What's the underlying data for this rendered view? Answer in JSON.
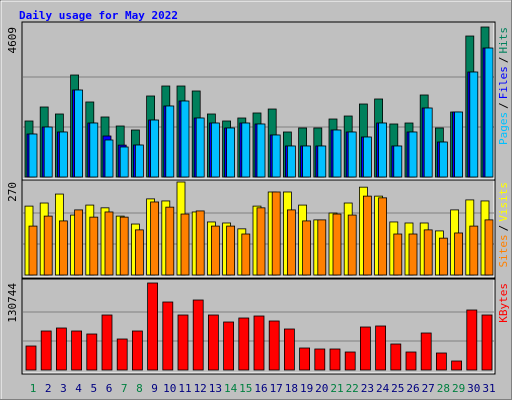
{
  "title": "Daily usage for May 2022",
  "separator": "/",
  "chart_data": [
    {
      "type": "bar",
      "ylim": [
        0,
        4609
      ],
      "yticks": [
        4609
      ],
      "series": [
        {
          "name": "Hits",
          "color": "#00805c",
          "values": [
            1721,
            2151,
            1936,
            3134,
            2305,
            1844,
            1567,
            1444,
            2489,
            2796,
            2796,
            2643,
            1936,
            1721,
            1813,
            1967,
            2089,
            1383,
            1506,
            1506,
            1782,
            1874,
            2243,
            2397,
            1629,
            1659,
            2520,
            1506,
            1997,
            4332,
            4609
          ]
        },
        {
          "name": "Files",
          "color": "#0000ff",
          "values": [
            1321,
            1536,
            1383,
            2673,
            1659,
            1260,
            980,
            983,
            1751,
            2182,
            2335,
            1813,
            1659,
            1506,
            1659,
            1629,
            1291,
            953,
            953,
            953,
            1444,
            1383,
            1229,
            1659,
            953,
            1383,
            2120,
            1075,
            1997,
            3226,
            3963
          ]
        },
        {
          "name": "Pages",
          "color": "#00c0ff",
          "values": [
            1321,
            1536,
            1383,
            2673,
            1659,
            1137,
            922,
            983,
            1751,
            2182,
            2335,
            1813,
            1659,
            1506,
            1659,
            1629,
            1291,
            953,
            953,
            953,
            1444,
            1383,
            1229,
            1659,
            953,
            1383,
            2120,
            1075,
            1997,
            3226,
            3963
          ]
        }
      ]
    },
    {
      "type": "bar",
      "ylim": [
        0,
        270
      ],
      "yticks": [
        270
      ],
      "series": [
        {
          "name": "Visits",
          "color": "#ffff00",
          "values": [
            200,
            209,
            235,
            174,
            203,
            195,
            171,
            148,
            221,
            215,
            270,
            183,
            154,
            151,
            134,
            200,
            241,
            241,
            203,
            160,
            180,
            209,
            255,
            229,
            154,
            151,
            151,
            128,
            189,
            218,
            215
          ]
        },
        {
          "name": "Sites",
          "color": "#ff8000",
          "values": [
            142,
            171,
            157,
            189,
            168,
            183,
            168,
            131,
            212,
            197,
            177,
            186,
            142,
            142,
            119,
            195,
            241,
            189,
            157,
            160,
            177,
            174,
            229,
            224,
            119,
            119,
            131,
            107,
            122,
            142,
            160
          ]
        }
      ]
    },
    {
      "type": "bar",
      "ylim": [
        0,
        130744
      ],
      "yticks": [
        130744
      ],
      "series": [
        {
          "name": "KBytes",
          "color": "#ff0000",
          "values": [
            36067,
            58610,
            63118,
            58610,
            54101,
            82654,
            46587,
            58610,
            130744,
            102190,
            82654,
            105196,
            82654,
            72135,
            78146,
            81152,
            73638,
            61615,
            33062,
            31559,
            31559,
            27051,
            64621,
            66124,
            39073,
            27051,
            55604,
            25548,
            13525,
            90169,
            82654
          ]
        }
      ],
      "categories": [
        "1",
        "2",
        "3",
        "4",
        "5",
        "6",
        "7",
        "8",
        "9",
        "10",
        "11",
        "12",
        "13",
        "14",
        "15",
        "16",
        "17",
        "18",
        "19",
        "20",
        "21",
        "22",
        "23",
        "24",
        "25",
        "26",
        "27",
        "28",
        "29",
        "30",
        "31"
      ],
      "category_colors": [
        "#008040",
        "#000080",
        "#000080",
        "#000080",
        "#000080",
        "#000080",
        "#008040",
        "#008040",
        "#000080",
        "#000080",
        "#000080",
        "#000080",
        "#000080",
        "#008040",
        "#008040",
        "#000080",
        "#000080",
        "#000080",
        "#000080",
        "#000080",
        "#008040",
        "#008040",
        "#000080",
        "#000080",
        "#000080",
        "#000080",
        "#000080",
        "#008040",
        "#008040",
        "#000080",
        "#000080"
      ]
    }
  ]
}
